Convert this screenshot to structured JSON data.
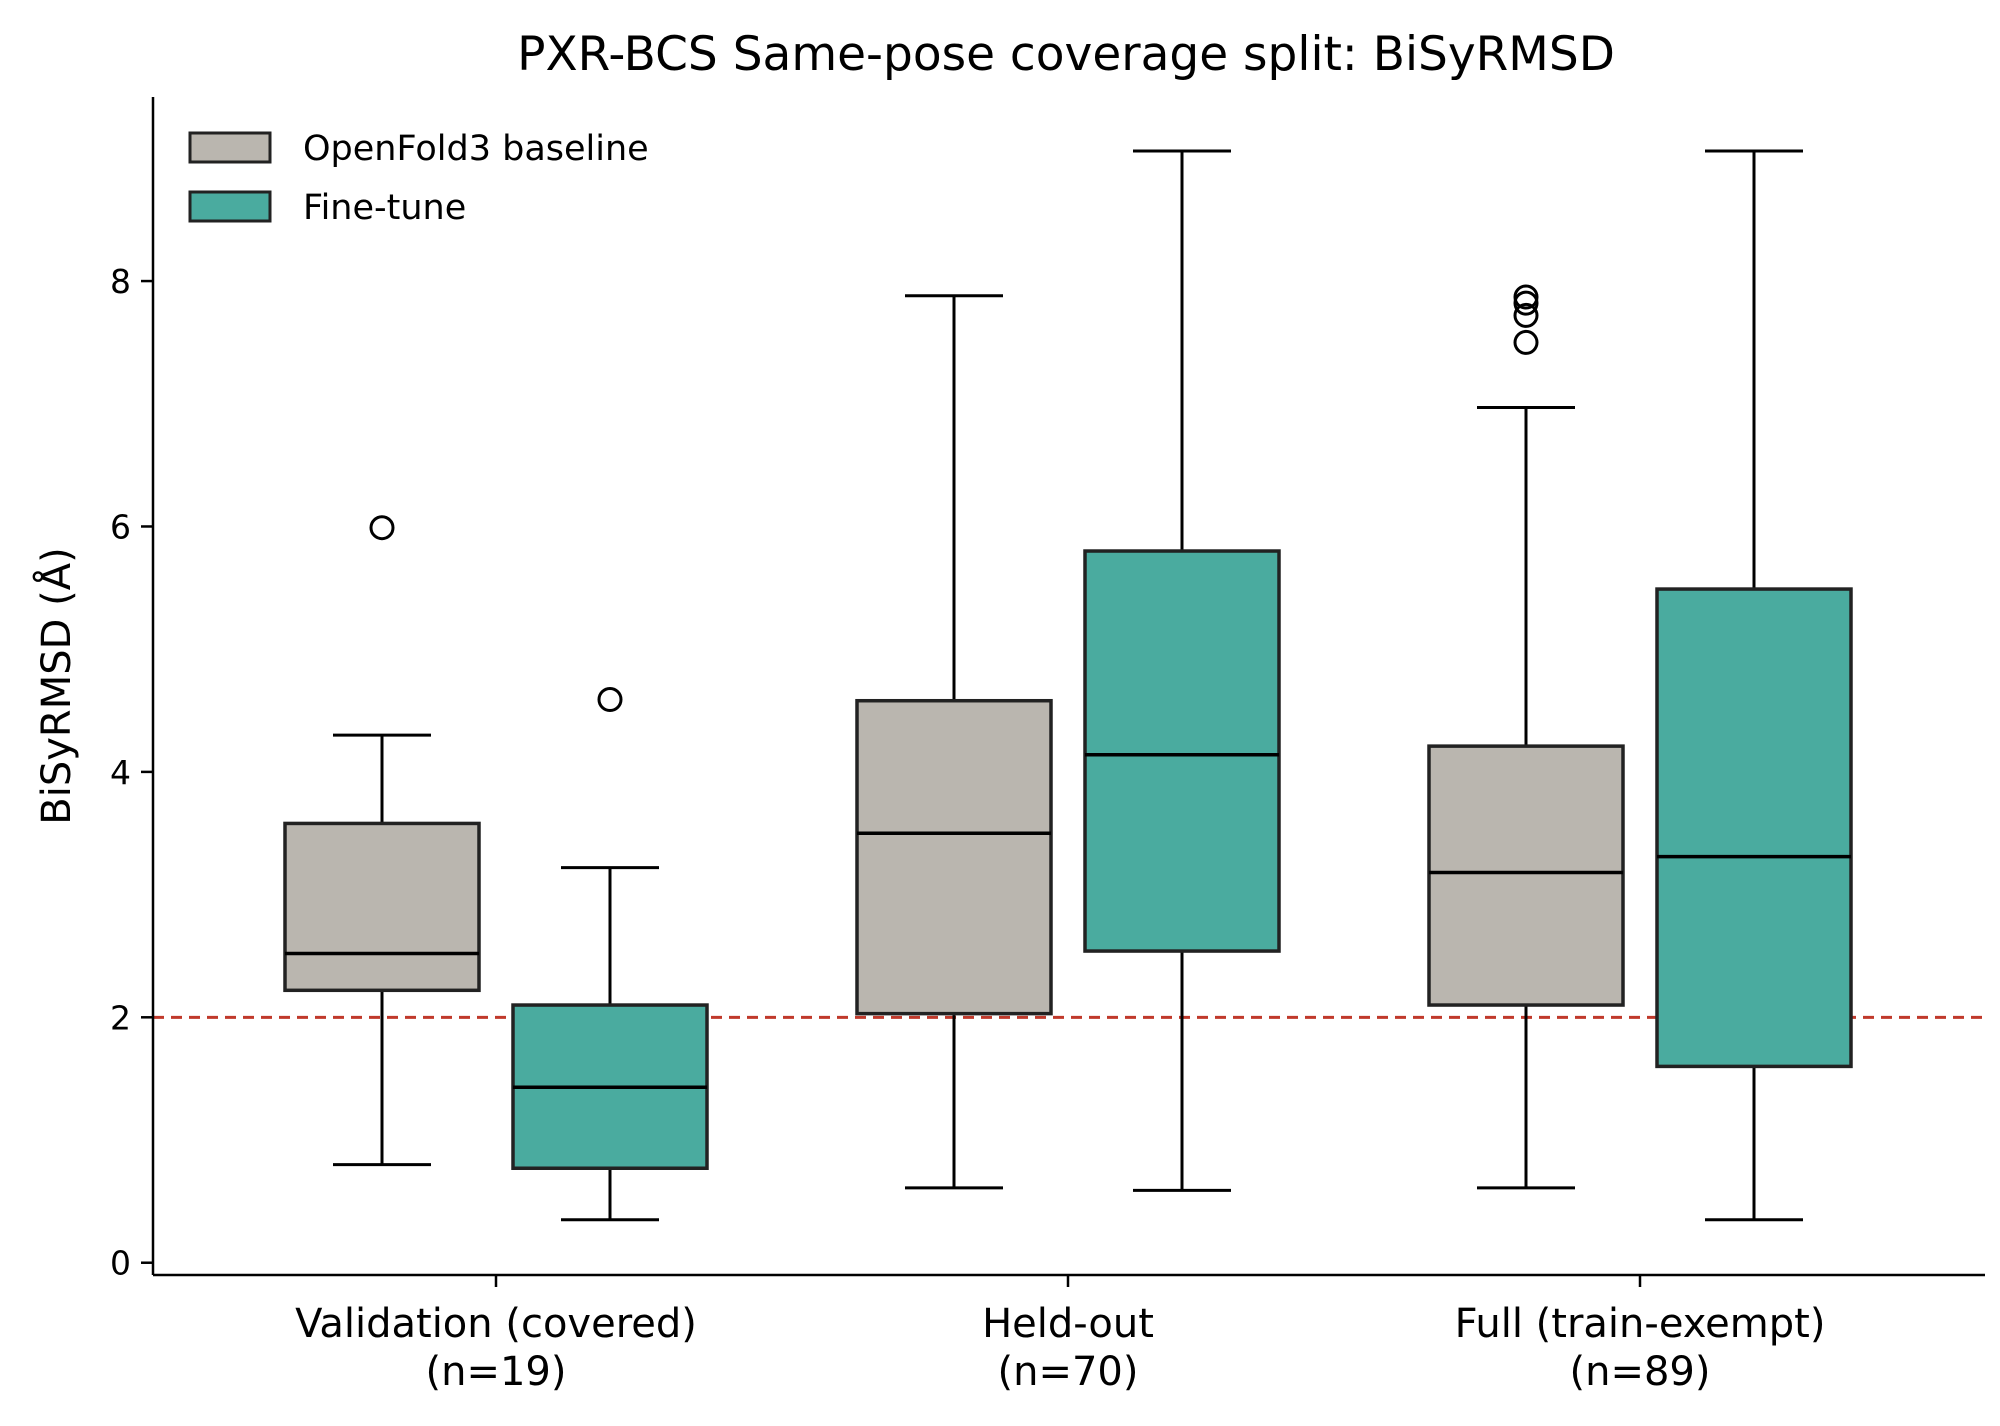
{
  "chart_data": {
    "type": "box",
    "title": "PXR-BCS Same-pose coverage split: BiSyRMSD",
    "xlabel": "",
    "ylabel": "BiSyRMSD (Å)",
    "ylim": [
      -0.1,
      9.5
    ],
    "yticks": [
      0,
      2,
      4,
      6,
      8
    ],
    "grid": false,
    "legend_position": "top-left",
    "reference_line": {
      "y": 2,
      "style": "dashed",
      "color": "#c0392b"
    },
    "categories": [
      {
        "label": "Validation (covered)",
        "n_label": "(n=19)"
      },
      {
        "label": "Held-out",
        "n_label": "(n=70)"
      },
      {
        "label": "Full (train-exempt)",
        "n_label": "(n=89)"
      }
    ],
    "series": [
      {
        "name": "OpenFold3 baseline",
        "color": "#bab6af",
        "boxes": [
          {
            "whislo": 0.8,
            "q1": 2.22,
            "median": 2.52,
            "q3": 3.58,
            "whishi": 4.3,
            "fliers": [
              5.99
            ]
          },
          {
            "whislo": 0.61,
            "q1": 2.03,
            "median": 3.5,
            "q3": 4.58,
            "whishi": 7.88,
            "fliers": []
          },
          {
            "whislo": 0.61,
            "q1": 2.1,
            "median": 3.18,
            "q3": 4.21,
            "whishi": 6.97,
            "fliers": [
              7.5,
              7.72,
              7.82,
              7.87
            ]
          }
        ]
      },
      {
        "name": "Fine-tune",
        "color": "#4aab9f",
        "boxes": [
          {
            "whislo": 0.35,
            "q1": 0.77,
            "median": 1.43,
            "q3": 2.1,
            "whishi": 3.22,
            "fliers": [
              4.59
            ]
          },
          {
            "whislo": 0.59,
            "q1": 2.54,
            "median": 4.14,
            "q3": 5.8,
            "whishi": 9.06,
            "fliers": []
          },
          {
            "whislo": 0.35,
            "q1": 1.6,
            "median": 3.31,
            "q3": 5.49,
            "whishi": 9.06,
            "fliers": []
          }
        ]
      }
    ]
  }
}
